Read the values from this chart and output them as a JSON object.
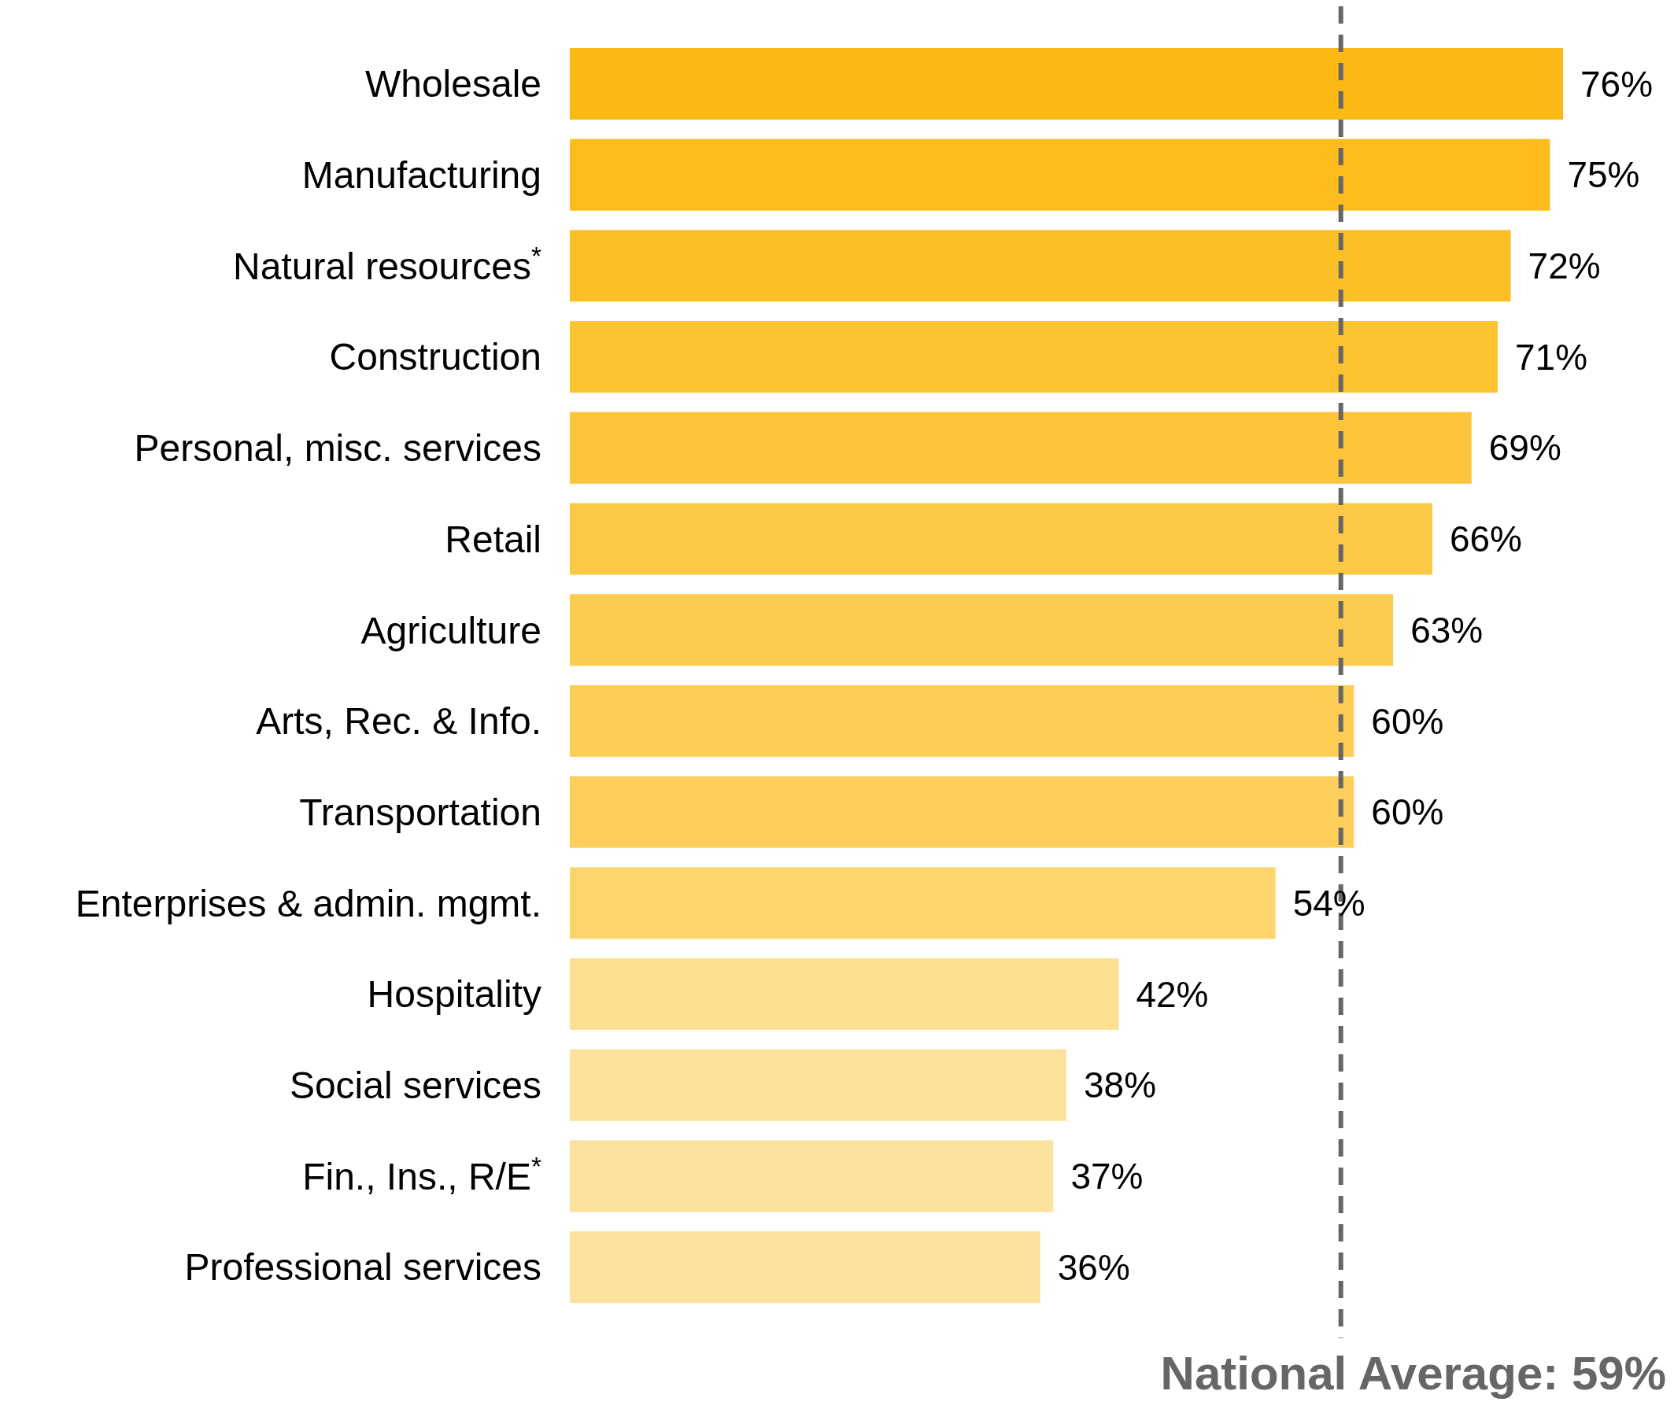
{
  "chart_data": {
    "type": "bar",
    "orientation": "horizontal",
    "value_labels": [
      "76%",
      "75%",
      "72%",
      "71%",
      "69%",
      "66%",
      "63%",
      "60%",
      "60%",
      "54%",
      "42%",
      "38%",
      "37%",
      "36%"
    ],
    "categories": [
      "Wholesale",
      "Manufacturing",
      "Natural resources$^{*}$",
      "Construction",
      "Personal, misc. services",
      "Retail",
      "Agriculture",
      "Arts, Rec. & Info.",
      "Transportation",
      "Enterprises & admin. mgmt.",
      "Hospitality",
      "Social services",
      "Fin., Ins., R/E$^{*}$",
      "Professional services"
    ],
    "values": [
      76,
      75,
      72,
      71,
      69,
      66,
      63,
      60,
      60,
      54,
      42,
      38,
      37,
      36
    ],
    "colors": [
      "#fdb913",
      "#fdbb1c",
      "#fdbf26",
      "#fdc230",
      "#fdc43a",
      "#fdc845",
      "#fdcb4e",
      "#fdcd55",
      "#fdcf5a",
      "#fdd56c",
      "#fddf92",
      "#fde29b",
      "#fde29d",
      "#fde29d"
    ],
    "ref_lines": [
      {
        "axis": "x",
        "value": 59,
        "label": "National Average: 59%",
        "color": "#666666",
        "line_style": "dashed"
      }
    ]
  }
}
